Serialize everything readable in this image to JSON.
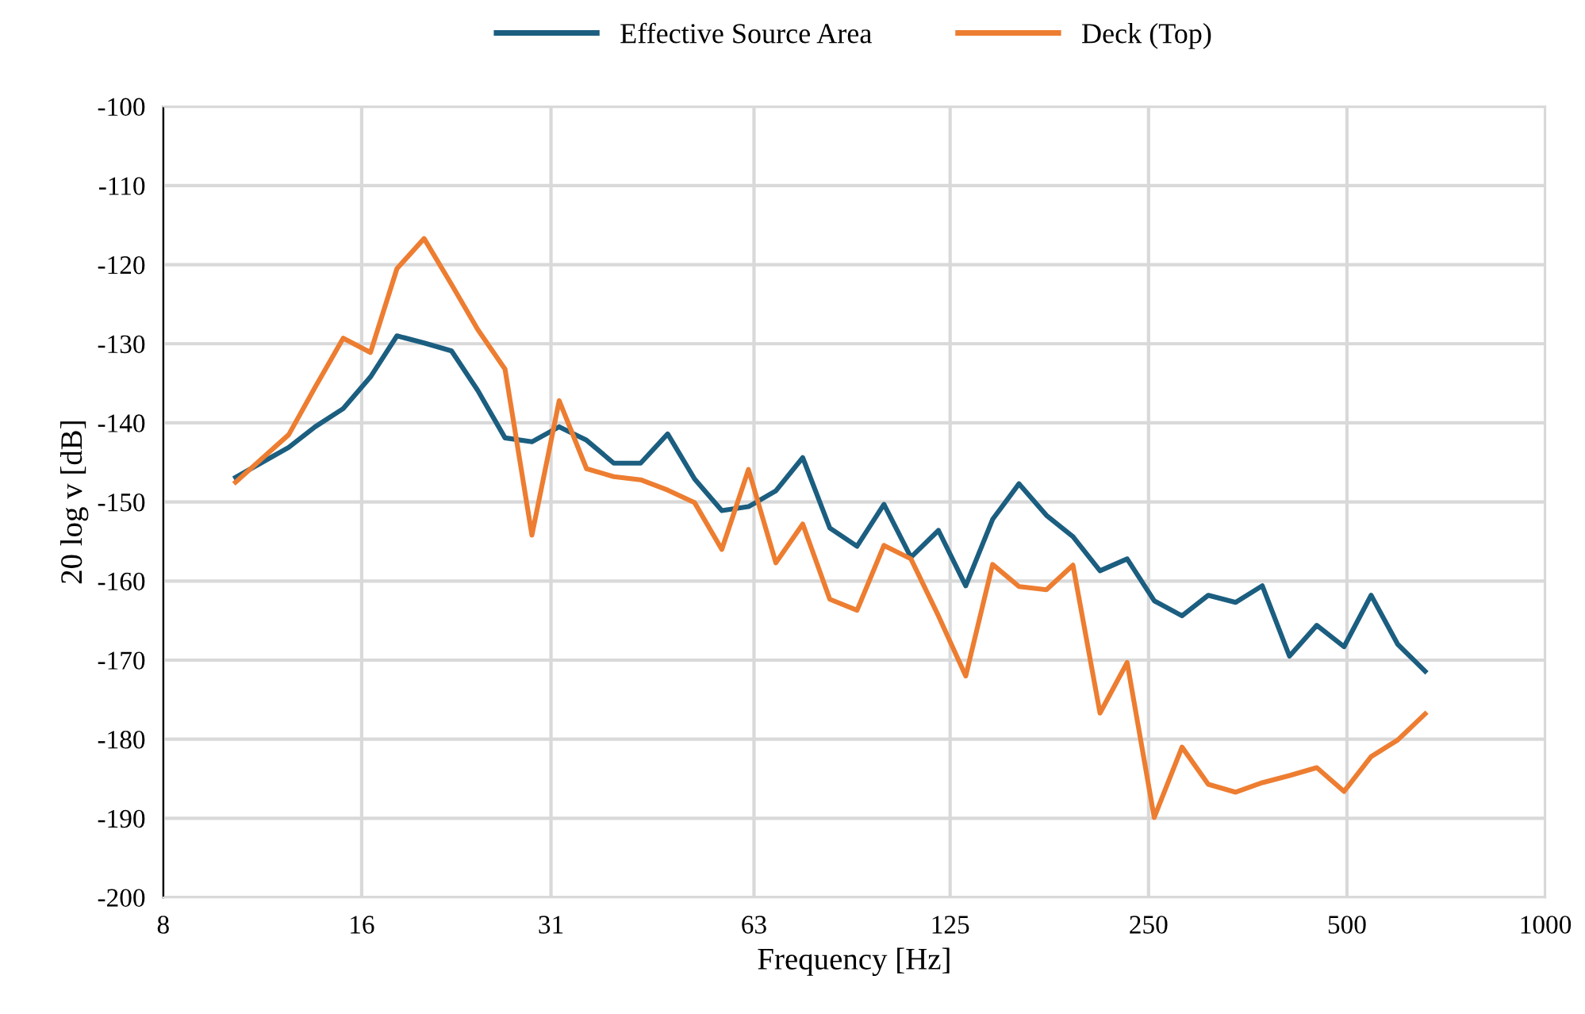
{
  "chart_data": {
    "type": "line",
    "xlabel": "Frequency [Hz]",
    "ylabel": "20 log v [dB]",
    "x": [
      10.3,
      11.3,
      12.4,
      13.6,
      15.0,
      16.5,
      18.1,
      19.9,
      21.9,
      24.0,
      26.4,
      29.0,
      31.9,
      35.1,
      38.6,
      42.4,
      46.6,
      51.2,
      56.3,
      61.8,
      68.0,
      74.7,
      82.1,
      90.3,
      99.2,
      109,
      120,
      132,
      145,
      159,
      175,
      192,
      211,
      232,
      255,
      281,
      308,
      339,
      372,
      409,
      450,
      495,
      544,
      597,
      657
    ],
    "series": [
      {
        "name": "Effective Source Area",
        "color": "#1b5e80",
        "values": [
          -146.9,
          -145.0,
          -143.1,
          -140.5,
          -138.2,
          -134.2,
          -129.0,
          -129.9,
          -130.9,
          -135.9,
          -141.9,
          -142.4,
          -140.5,
          -142.2,
          -145.1,
          -145.1,
          -141.4,
          -147.1,
          -151.1,
          -150.6,
          -148.6,
          -144.4,
          -153.3,
          -155.6,
          -150.3,
          -157.0,
          -153.6,
          -160.6,
          -152.2,
          -147.7,
          -151.7,
          -154.4,
          -158.7,
          -157.2,
          -162.5,
          -164.4,
          -161.8,
          -162.7,
          -160.6,
          -169.5,
          -165.6,
          -168.3,
          -161.8,
          -168.0,
          -171.4
        ]
      },
      {
        "name": "Deck (Top)",
        "color": "#ed7d31",
        "values": [
          -147.5,
          -144.5,
          -141.5,
          -135.5,
          -129.3,
          -131.1,
          -120.5,
          -116.7,
          -122.5,
          -128.2,
          -133.2,
          -154.2,
          -137.2,
          -145.8,
          -146.8,
          -147.2,
          -148.5,
          -150.1,
          -156.0,
          -145.9,
          -157.7,
          -152.8,
          -162.3,
          -163.7,
          -155.5,
          -157.2,
          -164.4,
          -172.0,
          -157.9,
          -160.7,
          -161.1,
          -158.0,
          -176.7,
          -170.3,
          -189.9,
          -181.0,
          -185.7,
          -186.7,
          -185.5,
          -184.6,
          -183.6,
          -186.6,
          -182.2,
          -180.1,
          -176.8
        ]
      }
    ],
    "log": "x",
    "xlim": [
      8,
      1000
    ],
    "xticks": [
      8,
      16,
      31,
      63,
      125,
      250,
      500,
      1000
    ],
    "ylim": [
      -200,
      -100
    ],
    "yticks": [
      -200,
      -190,
      -180,
      -170,
      -160,
      -150,
      -140,
      -130,
      -120,
      -110,
      -100
    ],
    "grid": true,
    "legend": "top",
    "marker": "none",
    "line_style": "solid"
  }
}
